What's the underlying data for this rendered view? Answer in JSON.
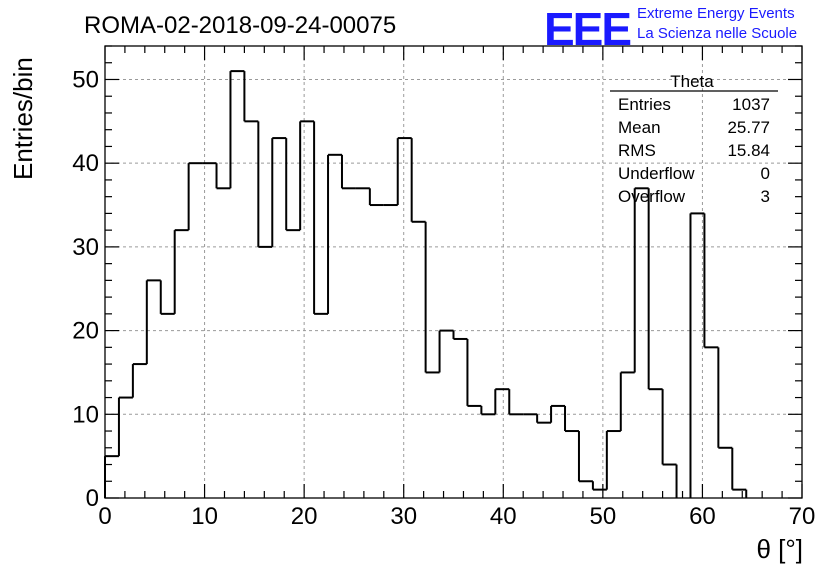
{
  "logo": {
    "mark": "EEE",
    "line1": "Extreme Energy Events",
    "line2": "La Scienza nelle Scuole"
  },
  "stats": {
    "title": "Theta",
    "rows": [
      {
        "label": "Entries",
        "value": "1037"
      },
      {
        "label": "Mean",
        "value": "25.77"
      },
      {
        "label": "RMS",
        "value": "15.84"
      },
      {
        "label": "Underflow",
        "value": "0"
      },
      {
        "label": "Overflow",
        "value": "3"
      }
    ]
  },
  "chart_data": {
    "type": "histogram",
    "title": "ROMA-02-2018-09-24-00075",
    "xlabel": "θ [°]",
    "ylabel": "Entries/bin",
    "xlim": [
      0,
      70
    ],
    "ylim": [
      0,
      54
    ],
    "grid": true,
    "bin_width": 1.4,
    "bin_edges_start": 0,
    "values": [
      5,
      12,
      16,
      26,
      22,
      32,
      40,
      40,
      37,
      51,
      45,
      30,
      43,
      32,
      45,
      22,
      41,
      37,
      37,
      35,
      35,
      43,
      33,
      15,
      20,
      19,
      11,
      10,
      13,
      10,
      10,
      9,
      11,
      8,
      2,
      1,
      8,
      15,
      37,
      13,
      4,
      0,
      34,
      18,
      6,
      1,
      0,
      0,
      0,
      0
    ],
    "xticks": [
      0,
      10,
      20,
      30,
      40,
      50,
      60,
      70
    ],
    "yticks": [
      0,
      10,
      20,
      30,
      40,
      50
    ],
    "line_color": "#000000",
    "grid_color": "#9a9a9a"
  }
}
